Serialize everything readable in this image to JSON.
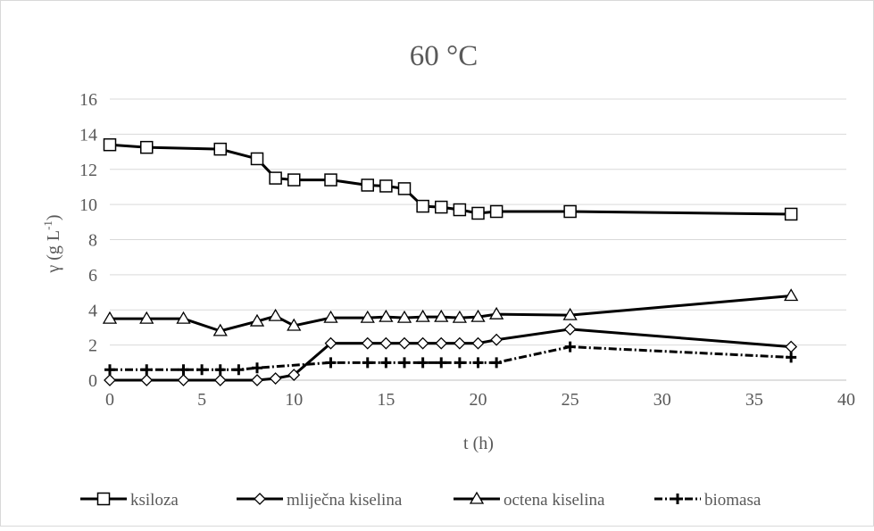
{
  "chart_data": {
    "type": "line",
    "title": "60 °C",
    "xlabel": "t (h)",
    "ylabel_main": "γ (g L",
    "ylabel_sup": "-1",
    "ylabel_close": ")",
    "xlim": [
      0,
      40
    ],
    "ylim": [
      0,
      16
    ],
    "xticks": [
      0,
      5,
      10,
      15,
      20,
      25,
      30,
      35,
      40
    ],
    "yticks": [
      0,
      2,
      4,
      6,
      8,
      10,
      12,
      14,
      16
    ],
    "grid": "horizontal",
    "legend_position": "bottom",
    "series": [
      {
        "name": "ksiloza",
        "marker": "square",
        "dash": "solid",
        "x": [
          0,
          2,
          6,
          8,
          9,
          10,
          12,
          14,
          15,
          16,
          17,
          18,
          19,
          20,
          21,
          25,
          37
        ],
        "y": [
          13.4,
          13.25,
          13.15,
          12.6,
          11.5,
          11.4,
          11.4,
          11.1,
          11.05,
          10.9,
          9.9,
          9.85,
          9.7,
          9.5,
          9.6,
          9.6,
          9.45
        ]
      },
      {
        "name": "mliječna kiselina",
        "marker": "diamond",
        "dash": "solid",
        "x": [
          0,
          2,
          4,
          6,
          8,
          9,
          10,
          12,
          14,
          15,
          16,
          17,
          18,
          19,
          20,
          21,
          25,
          37
        ],
        "y": [
          0,
          0,
          0,
          0,
          0,
          0.1,
          0.3,
          2.1,
          2.1,
          2.1,
          2.1,
          2.1,
          2.1,
          2.1,
          2.1,
          2.3,
          2.9,
          1.9
        ]
      },
      {
        "name": "octena kiselina",
        "marker": "triangle",
        "dash": "solid",
        "x": [
          0,
          2,
          4,
          6,
          8,
          9,
          10,
          12,
          14,
          15,
          16,
          17,
          18,
          19,
          20,
          21,
          25,
          37
        ],
        "y": [
          3.5,
          3.5,
          3.5,
          2.8,
          3.35,
          3.65,
          3.1,
          3.55,
          3.55,
          3.6,
          3.55,
          3.6,
          3.6,
          3.55,
          3.6,
          3.75,
          3.7,
          4.8
        ]
      },
      {
        "name": "biomasa",
        "marker": "plus",
        "dash": "dashdot",
        "x": [
          0,
          2,
          4,
          5,
          6,
          7,
          8,
          12,
          14,
          15,
          16,
          17,
          18,
          19,
          20,
          21,
          25,
          37
        ],
        "y": [
          0.6,
          0.6,
          0.6,
          0.6,
          0.6,
          0.6,
          0.7,
          1.0,
          1.0,
          1.0,
          1.0,
          1.0,
          1.0,
          1.0,
          1.0,
          1.0,
          1.9,
          1.3
        ]
      }
    ]
  }
}
